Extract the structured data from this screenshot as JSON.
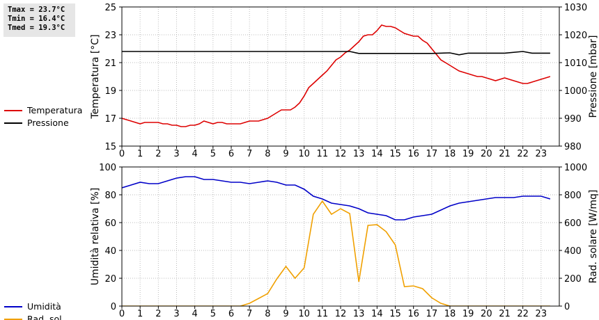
{
  "stats": {
    "tmax": "Tmax = 23.7°C",
    "tmin": "Tmin = 16.4°C",
    "tmed": "Tmed = 19.3°C"
  },
  "colors": {
    "temperature": "#dd0000",
    "pressure": "#000000",
    "humidity": "#0000c8",
    "radiation": "#f0a000",
    "grid": "#bbbbbb"
  },
  "chart_data": [
    {
      "type": "line",
      "x_ticks": [
        "0",
        "1",
        "2",
        "3",
        "4",
        "5",
        "6",
        "7",
        "8",
        "9",
        "10",
        "11",
        "12",
        "13",
        "14",
        "15",
        "16",
        "17",
        "18",
        "19",
        "20",
        "21",
        "22",
        "23"
      ],
      "x_range": [
        0,
        24
      ],
      "xlabel": "",
      "ylabel_left": "Temperatura [°C]",
      "ylabel_right": "Pressione [mbar]",
      "ylim_left": [
        15,
        25
      ],
      "ylim_right": [
        980,
        1030
      ],
      "yticks_left": [
        "15",
        "17",
        "19",
        "21",
        "23",
        "25"
      ],
      "yticks_right": [
        "980",
        "990",
        "1000",
        "1010",
        "1020",
        "1030"
      ],
      "grid": true,
      "legend_position": "left",
      "series": [
        {
          "name": "Temperatura",
          "axis": "left",
          "x": [
            0,
            0.25,
            0.5,
            0.75,
            1,
            1.25,
            1.5,
            1.75,
            2,
            2.25,
            2.5,
            2.75,
            3,
            3.25,
            3.5,
            3.75,
            4,
            4.25,
            4.5,
            4.75,
            5,
            5.25,
            5.5,
            5.75,
            6,
            6.25,
            6.5,
            6.75,
            7,
            7.25,
            7.5,
            7.75,
            8,
            8.25,
            8.5,
            8.75,
            9,
            9.25,
            9.5,
            9.75,
            10,
            10.25,
            10.5,
            10.75,
            11,
            11.25,
            11.5,
            11.75,
            12,
            12.25,
            12.5,
            12.75,
            13,
            13.25,
            13.5,
            13.75,
            14,
            14.25,
            14.5,
            14.75,
            15,
            15.25,
            15.5,
            15.75,
            16,
            16.25,
            16.5,
            16.75,
            17,
            17.25,
            17.5,
            17.75,
            18,
            18.25,
            18.5,
            18.75,
            19,
            19.25,
            19.5,
            19.75,
            20,
            20.25,
            20.5,
            20.75,
            21,
            21.25,
            21.5,
            21.75,
            22,
            22.25,
            22.5,
            22.75,
            23,
            23.25,
            23.5
          ],
          "values": [
            17.0,
            16.9,
            16.8,
            16.7,
            16.6,
            16.7,
            16.7,
            16.7,
            16.7,
            16.6,
            16.6,
            16.5,
            16.5,
            16.4,
            16.4,
            16.5,
            16.5,
            16.6,
            16.8,
            16.7,
            16.6,
            16.7,
            16.7,
            16.6,
            16.6,
            16.6,
            16.6,
            16.7,
            16.8,
            16.8,
            16.8,
            16.9,
            17.0,
            17.2,
            17.4,
            17.6,
            17.6,
            17.6,
            17.8,
            18.1,
            18.6,
            19.2,
            19.5,
            19.8,
            20.1,
            20.4,
            20.8,
            21.2,
            21.4,
            21.7,
            21.9,
            22.2,
            22.5,
            22.9,
            23.0,
            23.0,
            23.3,
            23.7,
            23.6,
            23.6,
            23.5,
            23.3,
            23.1,
            23.0,
            22.9,
            22.9,
            22.6,
            22.4,
            22.0,
            21.6,
            21.2,
            21.0,
            20.8,
            20.6,
            20.4,
            20.3,
            20.2,
            20.1,
            20.0,
            20.0,
            19.9,
            19.8,
            19.7,
            19.8,
            19.9,
            19.8,
            19.7,
            19.6,
            19.5,
            19.5,
            19.6,
            19.7,
            19.8,
            19.9,
            20.0
          ]
        },
        {
          "name": "Pressione",
          "axis": "right",
          "x": [
            0,
            12.5,
            13,
            17,
            18,
            18.5,
            19,
            21,
            22,
            22.5,
            23.5
          ],
          "values": [
            1014,
            1014,
            1013.3,
            1013.3,
            1013.5,
            1012.8,
            1013.4,
            1013.4,
            1014,
            1013.4,
            1013.4
          ]
        }
      ]
    },
    {
      "type": "line",
      "x_ticks": [
        "0",
        "1",
        "2",
        "3",
        "4",
        "5",
        "6",
        "7",
        "8",
        "9",
        "10",
        "11",
        "12",
        "13",
        "14",
        "15",
        "16",
        "17",
        "18",
        "19",
        "20",
        "21",
        "22",
        "23"
      ],
      "x_range": [
        0,
        24
      ],
      "xlabel": "",
      "ylabel_left": "Umidità relativa [%]",
      "ylabel_right": "Rad. solare [W/mq]",
      "ylim_left": [
        0,
        100
      ],
      "ylim_right": [
        0,
        1000
      ],
      "yticks_left": [
        "0",
        "20",
        "40",
        "60",
        "80",
        "100"
      ],
      "yticks_right": [
        "0",
        "200",
        "400",
        "600",
        "800",
        "1000"
      ],
      "grid": true,
      "legend_position": "left",
      "series": [
        {
          "name": "Umidità",
          "axis": "left",
          "x": [
            0,
            0.5,
            1,
            1.5,
            2,
            2.5,
            3,
            3.5,
            4,
            4.5,
            5,
            5.5,
            6,
            6.5,
            7,
            7.5,
            8,
            8.5,
            9,
            9.5,
            10,
            10.5,
            11,
            11.5,
            12,
            12.5,
            13,
            13.5,
            14,
            14.5,
            15,
            15.5,
            16,
            16.5,
            17,
            17.5,
            18,
            18.5,
            19,
            19.5,
            20,
            20.5,
            21,
            21.5,
            22,
            22.5,
            23,
            23.5
          ],
          "values": [
            85,
            87,
            89,
            88,
            88,
            90,
            92,
            93,
            93,
            91,
            91,
            90,
            89,
            89,
            88,
            89,
            90,
            89,
            87,
            87,
            84,
            79,
            77,
            74,
            73,
            72,
            70,
            67,
            66,
            65,
            62,
            62,
            64,
            65,
            66,
            69,
            72,
            74,
            75,
            76,
            77,
            78,
            78,
            78,
            79,
            79,
            79,
            77
          ]
        },
        {
          "name": "Rad. sol.",
          "axis": "right",
          "x": [
            0,
            6.5,
            7,
            7.5,
            8,
            8.5,
            9,
            9.5,
            10,
            10.5,
            11,
            11.5,
            12,
            12.5,
            13,
            13.5,
            14,
            14.5,
            15,
            15.5,
            16,
            16.5,
            17,
            17.5,
            18,
            23.5
          ],
          "values": [
            0,
            0,
            20,
            55,
            90,
            195,
            285,
            200,
            275,
            660,
            755,
            660,
            700,
            665,
            175,
            580,
            585,
            535,
            440,
            140,
            145,
            125,
            60,
            20,
            0,
            0
          ]
        }
      ]
    }
  ]
}
